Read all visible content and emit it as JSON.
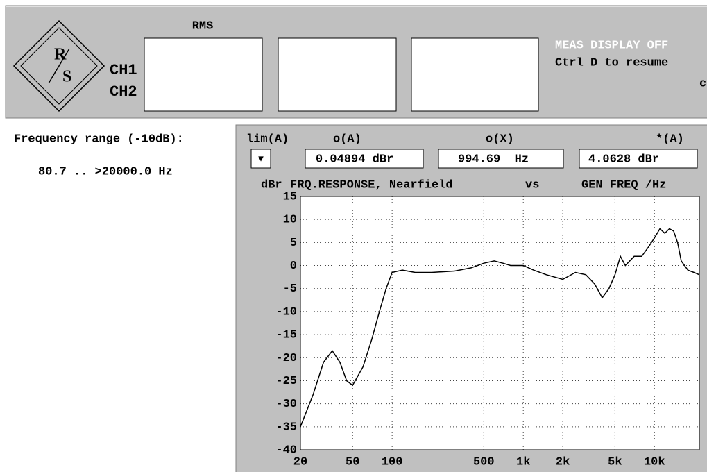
{
  "header": {
    "logo": {
      "top": "R",
      "bottom": "S"
    },
    "column_label": "RMS",
    "channels": [
      "CH1",
      "CH2"
    ],
    "status": [
      "MEAS DISPLAY OFF",
      "Ctrl D to resume"
    ],
    "edge_char": "c"
  },
  "summary": {
    "label": "Frequency range (-10dB):",
    "value": "80.7 .. >20000.0 Hz"
  },
  "readouts": [
    {
      "label": "lim(A)",
      "value": "▼"
    },
    {
      "label": "o(A)",
      "value": "0.04894 dBr"
    },
    {
      "label": "o(X)",
      "value": "994.69  Hz"
    },
    {
      "label": "*(A)",
      "value": "4.0628 dBr"
    }
  ],
  "chart_data": {
    "type": "line",
    "title": "FRQ.RESPONSE, Nearfield",
    "annotations": [
      "vs"
    ],
    "ylabel": "dBr",
    "xlabel": "GEN FREQ /Hz",
    "log_x": true,
    "grid": true,
    "xlim": [
      20,
      22000
    ],
    "ylim": [
      -40,
      15
    ],
    "xticks": [
      20,
      50,
      100,
      500,
      {
        "value": 1000,
        "label": "1k"
      },
      {
        "value": 2000,
        "label": "2k"
      },
      {
        "value": 5000,
        "label": "5k"
      },
      {
        "value": 10000,
        "label": "10k"
      }
    ],
    "yticks": [
      15,
      10,
      5,
      0,
      -5,
      -10,
      -15,
      -20,
      -25,
      -30,
      -35,
      -40
    ],
    "x": [
      20,
      25,
      30,
      35,
      40,
      45,
      50,
      60,
      70,
      80,
      90,
      100,
      120,
      150,
      200,
      300,
      400,
      500,
      600,
      700,
      800,
      1000,
      1200,
      1500,
      2000,
      2500,
      3000,
      3500,
      4000,
      4500,
      5000,
      5500,
      6000,
      7000,
      8000,
      9000,
      10000,
      11000,
      12000,
      13000,
      14000,
      15000,
      16000,
      18000,
      20000,
      22000
    ],
    "series": [
      {
        "name": "Nearfield",
        "color": "#000000",
        "values": [
          -35,
          -28,
          -21,
          -18.5,
          -21,
          -25,
          -26,
          -22,
          -16,
          -10,
          -5,
          -1.5,
          -1,
          -1.5,
          -1.5,
          -1.2,
          -0.5,
          0.5,
          1,
          0.5,
          0,
          0,
          -1,
          -2,
          -3,
          -1.5,
          -2,
          -4,
          -7,
          -5,
          -2,
          2,
          0,
          2,
          2,
          4,
          6,
          8,
          7,
          8,
          7.5,
          5,
          1,
          -1,
          -1.5,
          -2
        ]
      }
    ]
  }
}
